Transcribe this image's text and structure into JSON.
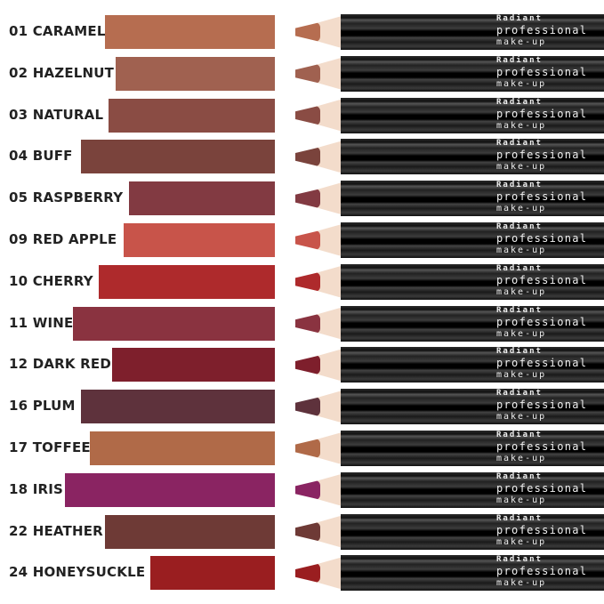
{
  "brand": {
    "line1": "Radiant",
    "line2": "professional",
    "line3": "make-up"
  },
  "shades": [
    {
      "label": "01 CARAMEL",
      "color": "#b66d50"
    },
    {
      "label": "02 HAZELNUT",
      "color": "#a06150"
    },
    {
      "label": "03 NATURAL",
      "color": "#8a4c44"
    },
    {
      "label": "04 BUFF",
      "color": "#7a433c"
    },
    {
      "label": "05 RASPBERRY",
      "color": "#823a42"
    },
    {
      "label": "09 RED APPLE",
      "color": "#c8544a"
    },
    {
      "label": "10 CHERRY",
      "color": "#ae2a2c"
    },
    {
      "label": "11 WINE",
      "color": "#8a3340"
    },
    {
      "label": "12 DARK RED",
      "color": "#7e1f2c"
    },
    {
      "label": "16 PLUM",
      "color": "#5e323c"
    },
    {
      "label": "17 TOFFEE",
      "color": "#b06a48"
    },
    {
      "label": "18 IRIS",
      "color": "#8a2462"
    },
    {
      "label": "22 HEATHER",
      "color": "#6e3a36"
    },
    {
      "label": "24 HONEYSUCKLE",
      "color": "#9a1e20"
    }
  ]
}
